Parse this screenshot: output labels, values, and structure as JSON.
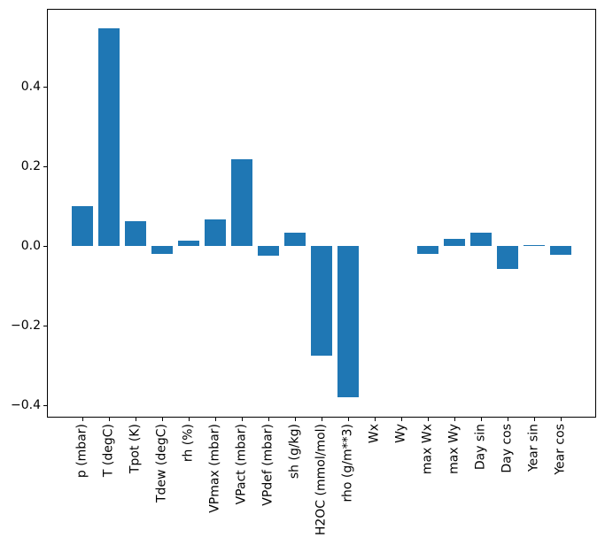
{
  "figure": {
    "background": "#ffffff",
    "bar_color": "#1f77b4",
    "axis_color": "#000000",
    "text_color": "#000000"
  },
  "chart_data": {
    "type": "bar",
    "title": "",
    "xlabel": "",
    "ylabel": "",
    "grid": false,
    "legend_position": "none",
    "categories": [
      "p (mbar)",
      "T (degC)",
      "Tpot (K)",
      "Tdew (degC)",
      "rh (%)",
      "VPmax (mbar)",
      "VPact (mbar)",
      "VPdef (mbar)",
      "sh (g/kg)",
      "H2OC (mmol/mol)",
      "rho (g/m**3)",
      "Wx",
      "Wy",
      "max Wx",
      "max Wy",
      "Day sin",
      "Day cos",
      "Year sin",
      "Year cos"
    ],
    "values": [
      0.1,
      0.548,
      0.064,
      -0.02,
      0.014,
      0.068,
      0.219,
      -0.024,
      0.035,
      -0.275,
      -0.38,
      0.0,
      0.0,
      -0.02,
      0.018,
      0.035,
      -0.057,
      0.004,
      -0.022
    ],
    "bar_width": 0.8,
    "xlim": [
      -1.34,
      19.34
    ],
    "ylim": [
      -0.43,
      0.596
    ],
    "yticks": [
      {
        "value": 0.4,
        "label": "0.4"
      },
      {
        "value": 0.2,
        "label": "0.2"
      },
      {
        "value": 0.0,
        "label": "0.0"
      },
      {
        "value": -0.2,
        "label": "−0.2"
      },
      {
        "value": -0.4,
        "label": "−0.4"
      }
    ]
  }
}
